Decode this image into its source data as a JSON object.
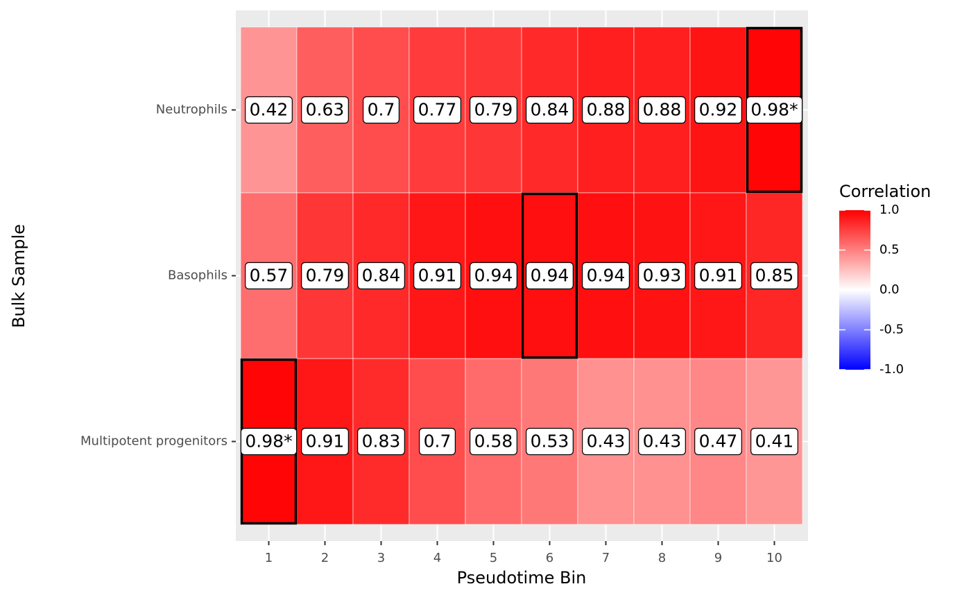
{
  "chart_data": {
    "type": "heatmap",
    "x_label": "Pseudotime Bin",
    "y_label": "Bulk Sample",
    "x_categories": [
      "1",
      "2",
      "3",
      "4",
      "5",
      "6",
      "7",
      "8",
      "9",
      "10"
    ],
    "y_categories": [
      "Neutrophils",
      "Basophils",
      "Multipotent progenitors"
    ],
    "values": [
      [
        0.42,
        0.63,
        0.7,
        0.77,
        0.79,
        0.84,
        0.88,
        0.88,
        0.92,
        0.98
      ],
      [
        0.57,
        0.79,
        0.84,
        0.91,
        0.94,
        0.94,
        0.94,
        0.93,
        0.91,
        0.85
      ],
      [
        0.98,
        0.91,
        0.83,
        0.7,
        0.58,
        0.53,
        0.43,
        0.43,
        0.47,
        0.41
      ]
    ],
    "value_labels": [
      [
        "0.42",
        "0.63",
        "0.7",
        "0.77",
        "0.79",
        "0.84",
        "0.88",
        "0.88",
        "0.92",
        "0.98*"
      ],
      [
        "0.57",
        "0.79",
        "0.84",
        "0.91",
        "0.94",
        "0.94",
        "0.94",
        "0.93",
        "0.91",
        "0.85"
      ],
      [
        "0.98*",
        "0.91",
        "0.83",
        "0.7",
        "0.58",
        "0.53",
        "0.43",
        "0.43",
        "0.47",
        "0.41"
      ]
    ],
    "highlight_cells": [
      [
        0,
        9
      ],
      [
        1,
        5
      ],
      [
        2,
        0
      ]
    ],
    "legend_title": "Correlation",
    "color_lim": [
      -1,
      1
    ],
    "color_ticks": [
      {
        "value": 1,
        "label": "1.0"
      },
      {
        "value": 0.5,
        "label": "0.5"
      },
      {
        "value": 0,
        "label": "0.0"
      },
      {
        "value": -0.5,
        "label": "-0.5"
      },
      {
        "value": -1,
        "label": "-1.0"
      }
    ],
    "low_color": "#0000ff",
    "mid_color": "#ffffff",
    "high_color": "#ff0000"
  }
}
